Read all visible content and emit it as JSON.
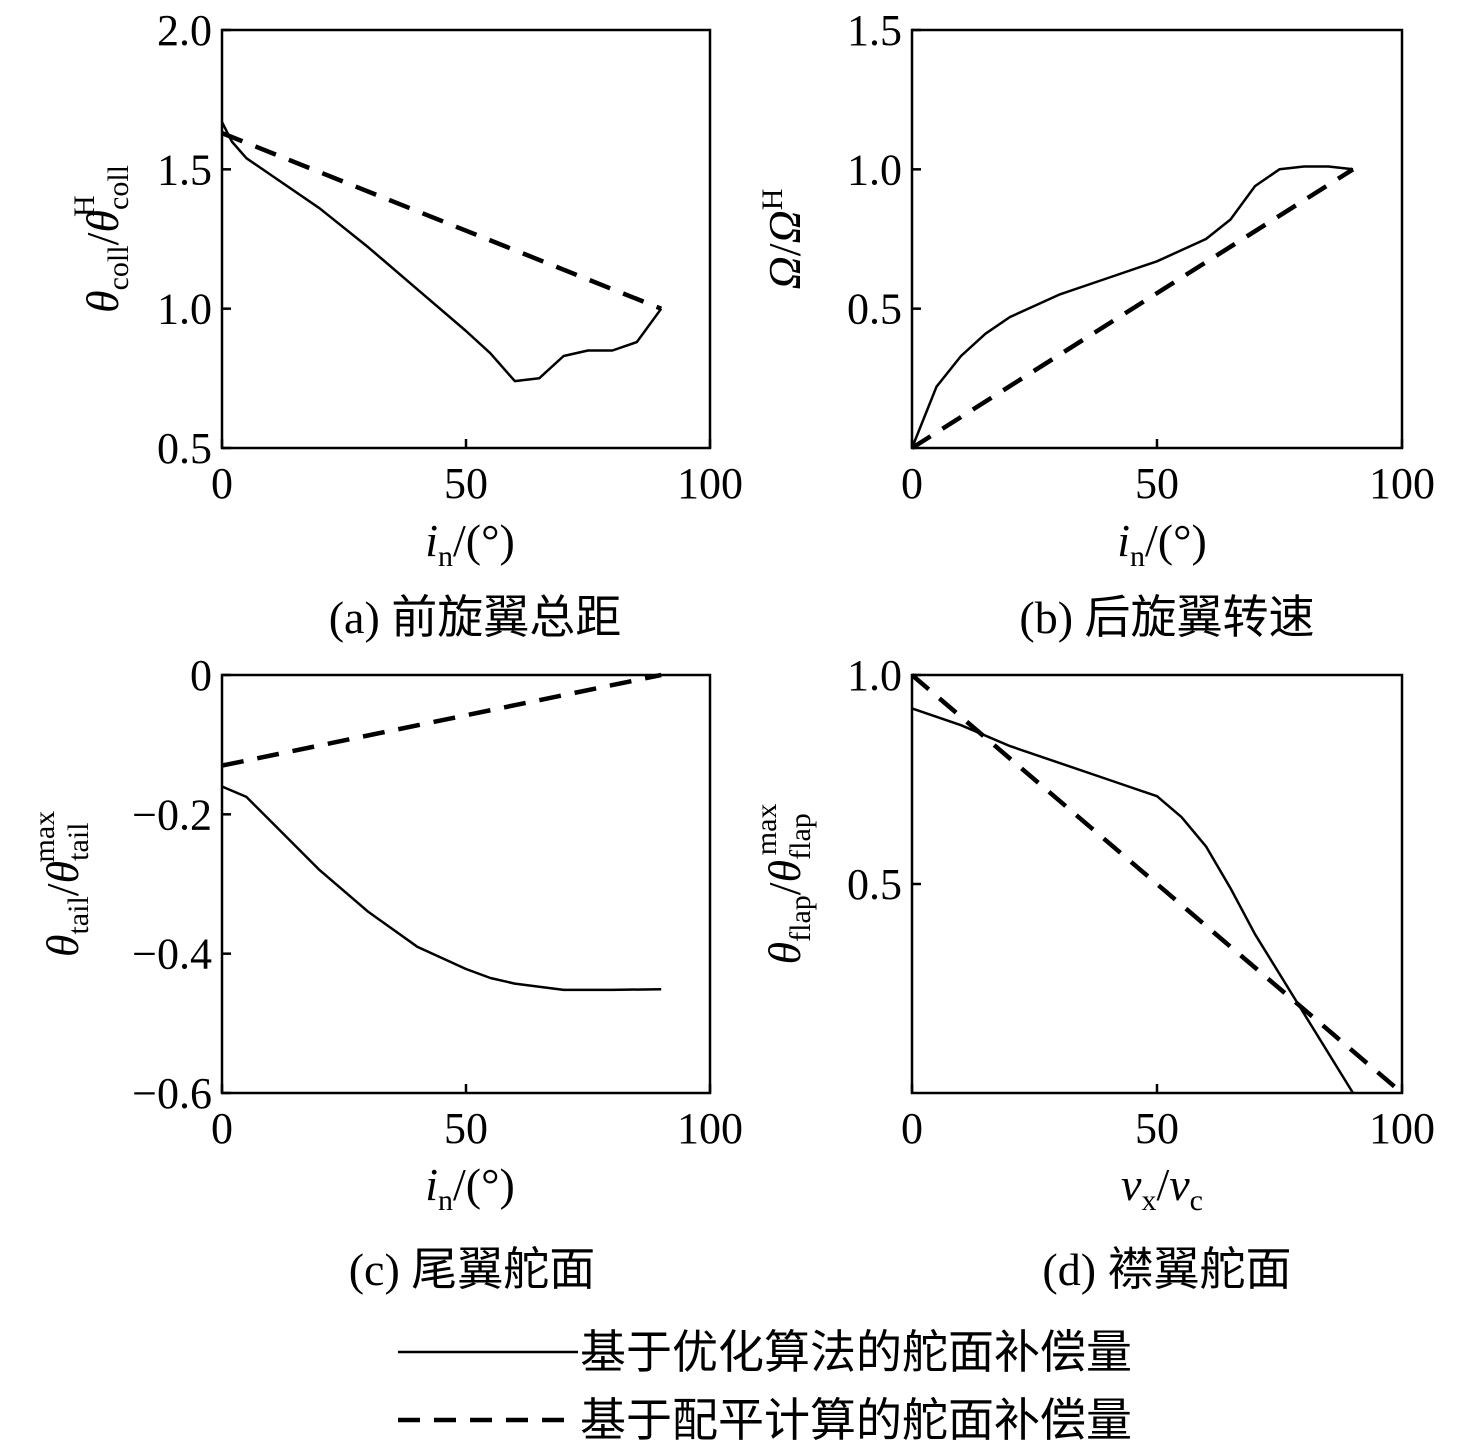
{
  "chart_data": [
    {
      "type": "line",
      "id": "a",
      "caption": "(a) 前旋翼总距",
      "xlabel": {
        "main": "i",
        "sub": "n",
        "unit": "/(°)"
      },
      "ylabel": {
        "num": "θ",
        "num_sub": "coll",
        "den": "θ",
        "den_sub": "coll",
        "den_sup": "H"
      },
      "xlim": [
        0,
        100
      ],
      "ylim": [
        0.5,
        2.0
      ],
      "xticks": [
        "0",
        "50",
        "100"
      ],
      "yticks": [
        {
          "v": 0.5,
          "label": "0.5"
        },
        {
          "v": 1.0,
          "label": "1.0"
        },
        {
          "v": 1.5,
          "label": "1.5"
        },
        {
          "v": 2.0,
          "label": "2.0"
        }
      ],
      "series": [
        {
          "style": "solid",
          "x": [
            0,
            2,
            5,
            10,
            20,
            30,
            40,
            50,
            55,
            60,
            65,
            70,
            75,
            80,
            85,
            90
          ],
          "y": [
            1.67,
            1.6,
            1.54,
            1.48,
            1.36,
            1.22,
            1.07,
            0.92,
            0.84,
            0.74,
            0.75,
            0.83,
            0.85,
            0.85,
            0.88,
            1.0
          ]
        },
        {
          "style": "dashed",
          "x": [
            0,
            90
          ],
          "y": [
            1.63,
            1.0
          ]
        }
      ]
    },
    {
      "type": "line",
      "id": "b",
      "caption": "(b) 后旋翼转速",
      "xlabel": {
        "main": "i",
        "sub": "n",
        "unit": "/(°)"
      },
      "ylabel": {
        "num": "Ω",
        "den": "Ω",
        "den_sup": "H"
      },
      "xlim": [
        0,
        100
      ],
      "ylim": [
        0,
        1.5
      ],
      "xticks": [
        "0",
        "50",
        "100"
      ],
      "yticks": [
        {
          "v": 0.5,
          "label": "0.5"
        },
        {
          "v": 1.0,
          "label": "1.0"
        },
        {
          "v": 1.5,
          "label": "1.5"
        }
      ],
      "series": [
        {
          "style": "solid",
          "x": [
            0,
            5,
            10,
            15,
            20,
            25,
            30,
            40,
            50,
            60,
            65,
            70,
            75,
            80,
            85,
            90
          ],
          "y": [
            0,
            0.22,
            0.33,
            0.41,
            0.47,
            0.51,
            0.55,
            0.61,
            0.67,
            0.75,
            0.82,
            0.94,
            1.0,
            1.01,
            1.01,
            1.0
          ]
        },
        {
          "style": "dashed",
          "x": [
            0,
            90
          ],
          "y": [
            0,
            1.0
          ]
        }
      ]
    },
    {
      "type": "line",
      "id": "c",
      "caption": "(c) 尾翼舵面",
      "xlabel": {
        "main": "i",
        "sub": "n",
        "unit": "/(°)"
      },
      "ylabel": {
        "num": "θ",
        "num_sub": "tail",
        "den": "θ",
        "den_sub": "tail",
        "den_sup": "max"
      },
      "xlim": [
        0,
        100
      ],
      "ylim": [
        -0.6,
        0
      ],
      "xticks": [
        "0",
        "50",
        "100"
      ],
      "yticks": [
        {
          "v": -0.6,
          "label": "−0.6"
        },
        {
          "v": -0.4,
          "label": "−0.4"
        },
        {
          "v": -0.2,
          "label": "−0.2"
        },
        {
          "v": 0,
          "label": "0"
        }
      ],
      "series": [
        {
          "style": "solid",
          "x": [
            0,
            5,
            10,
            20,
            30,
            40,
            50,
            55,
            60,
            70,
            80,
            90
          ],
          "y": [
            -0.16,
            -0.175,
            -0.21,
            -0.28,
            -0.34,
            -0.39,
            -0.422,
            -0.435,
            -0.443,
            -0.452,
            -0.452,
            -0.451
          ]
        },
        {
          "style": "dashed",
          "x": [
            0,
            90
          ],
          "y": [
            -0.13,
            0.0
          ]
        }
      ]
    },
    {
      "type": "line",
      "id": "d",
      "caption": "(d) 襟翼舵面",
      "xlabel": {
        "main": "v",
        "sub": "x",
        "mid": "/",
        "main2": "v",
        "sub2": "c"
      },
      "ylabel": {
        "num": "θ",
        "num_sub": "flap",
        "den": "θ",
        "den_sub": "flap",
        "den_sup": "max"
      },
      "xlim": [
        0,
        100
      ],
      "ylim": [
        0,
        1.0
      ],
      "xticks": [
        "0",
        "50",
        "100"
      ],
      "yticks": [
        {
          "v": 0.5,
          "label": "0.5"
        },
        {
          "v": 1.0,
          "label": "1.0"
        }
      ],
      "series": [
        {
          "style": "solid",
          "x": [
            0,
            10,
            20,
            30,
            40,
            50,
            55,
            60,
            65,
            70,
            80,
            90
          ],
          "y": [
            0.92,
            0.88,
            0.83,
            0.79,
            0.75,
            0.71,
            0.66,
            0.59,
            0.49,
            0.38,
            0.19,
            0.0
          ]
        },
        {
          "style": "dashed",
          "x": [
            0,
            100
          ],
          "y": [
            1.0,
            0.0
          ]
        }
      ]
    }
  ],
  "legend": [
    {
      "style": "solid",
      "label": "基于优化算法的舵面补偿量"
    },
    {
      "style": "dashed",
      "label": "基于配平计算的舵面补偿量"
    }
  ]
}
